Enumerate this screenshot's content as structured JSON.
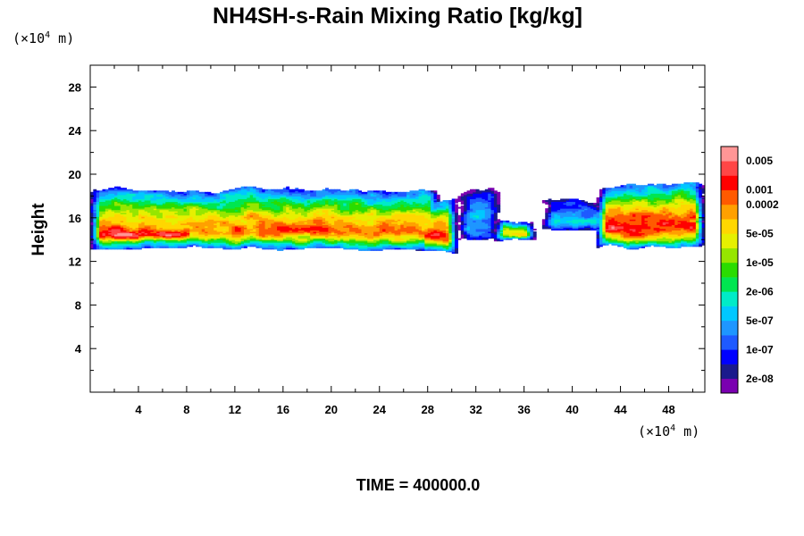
{
  "chart_data": {
    "type": "heatmap",
    "title": "NH4SH-s-Rain Mixing Ratio [kg/kg]",
    "xlabel": "",
    "ylabel": "Height",
    "x_unit": "(×10⁴ m)",
    "x_unit_prefix": "(×10",
    "x_unit_exp": "4",
    "x_unit_suffix": " m)",
    "y_unit": "(×10⁴ m)",
    "y_unit_prefix": "(×10",
    "y_unit_exp": "4",
    "y_unit_suffix": " m)",
    "xlim": [
      0,
      51
    ],
    "ylim": [
      0,
      30
    ],
    "x_ticks": [
      4,
      8,
      12,
      16,
      20,
      24,
      28,
      32,
      36,
      40,
      44,
      48
    ],
    "y_ticks": [
      4,
      8,
      12,
      16,
      20,
      24,
      28
    ],
    "footer": "TIME = 400000.0",
    "colorbar": {
      "colors": [
        "#7a00b0",
        "#1a1a8c",
        "#0000ff",
        "#1e5aff",
        "#1e96ff",
        "#00c8ff",
        "#00ebc8",
        "#00e650",
        "#2adc00",
        "#96e600",
        "#e6f000",
        "#ffd700",
        "#ffa000",
        "#ff5a00",
        "#ff0000",
        "#ff4646",
        "#ff9696"
      ],
      "labels": [
        "2e-08",
        "1e-07",
        "5e-07",
        "2e-06",
        "1e-05",
        "5e-05",
        "0.0002",
        "0.001",
        "0.005"
      ],
      "label_levels": [
        1,
        3,
        5,
        7,
        9,
        11,
        13,
        14,
        16
      ]
    },
    "bands": [
      {
        "x": [
          0,
          29
        ],
        "bottom": 13.2,
        "top": 18.6,
        "peak": 0.78
      },
      {
        "x": [
          0,
          9
        ],
        "bottom": 13.6,
        "top": 16.5,
        "peak": 0.9
      },
      {
        "x": [
          27,
          30.5
        ],
        "bottom": 13.0,
        "top": 17.5,
        "peak": 0.85
      },
      {
        "x": [
          30.5,
          34
        ],
        "bottom": 14.2,
        "top": 18.5,
        "peak": 0.3
      },
      {
        "x": [
          33.5,
          37
        ],
        "bottom": 14.0,
        "top": 15.4,
        "peak": 0.7
      },
      {
        "x": [
          37.5,
          43
        ],
        "bottom": 15.0,
        "top": 17.5,
        "peak": 0.3
      },
      {
        "x": [
          42,
          51
        ],
        "bottom": 13.3,
        "top": 19.0,
        "peak": 0.88
      }
    ]
  }
}
